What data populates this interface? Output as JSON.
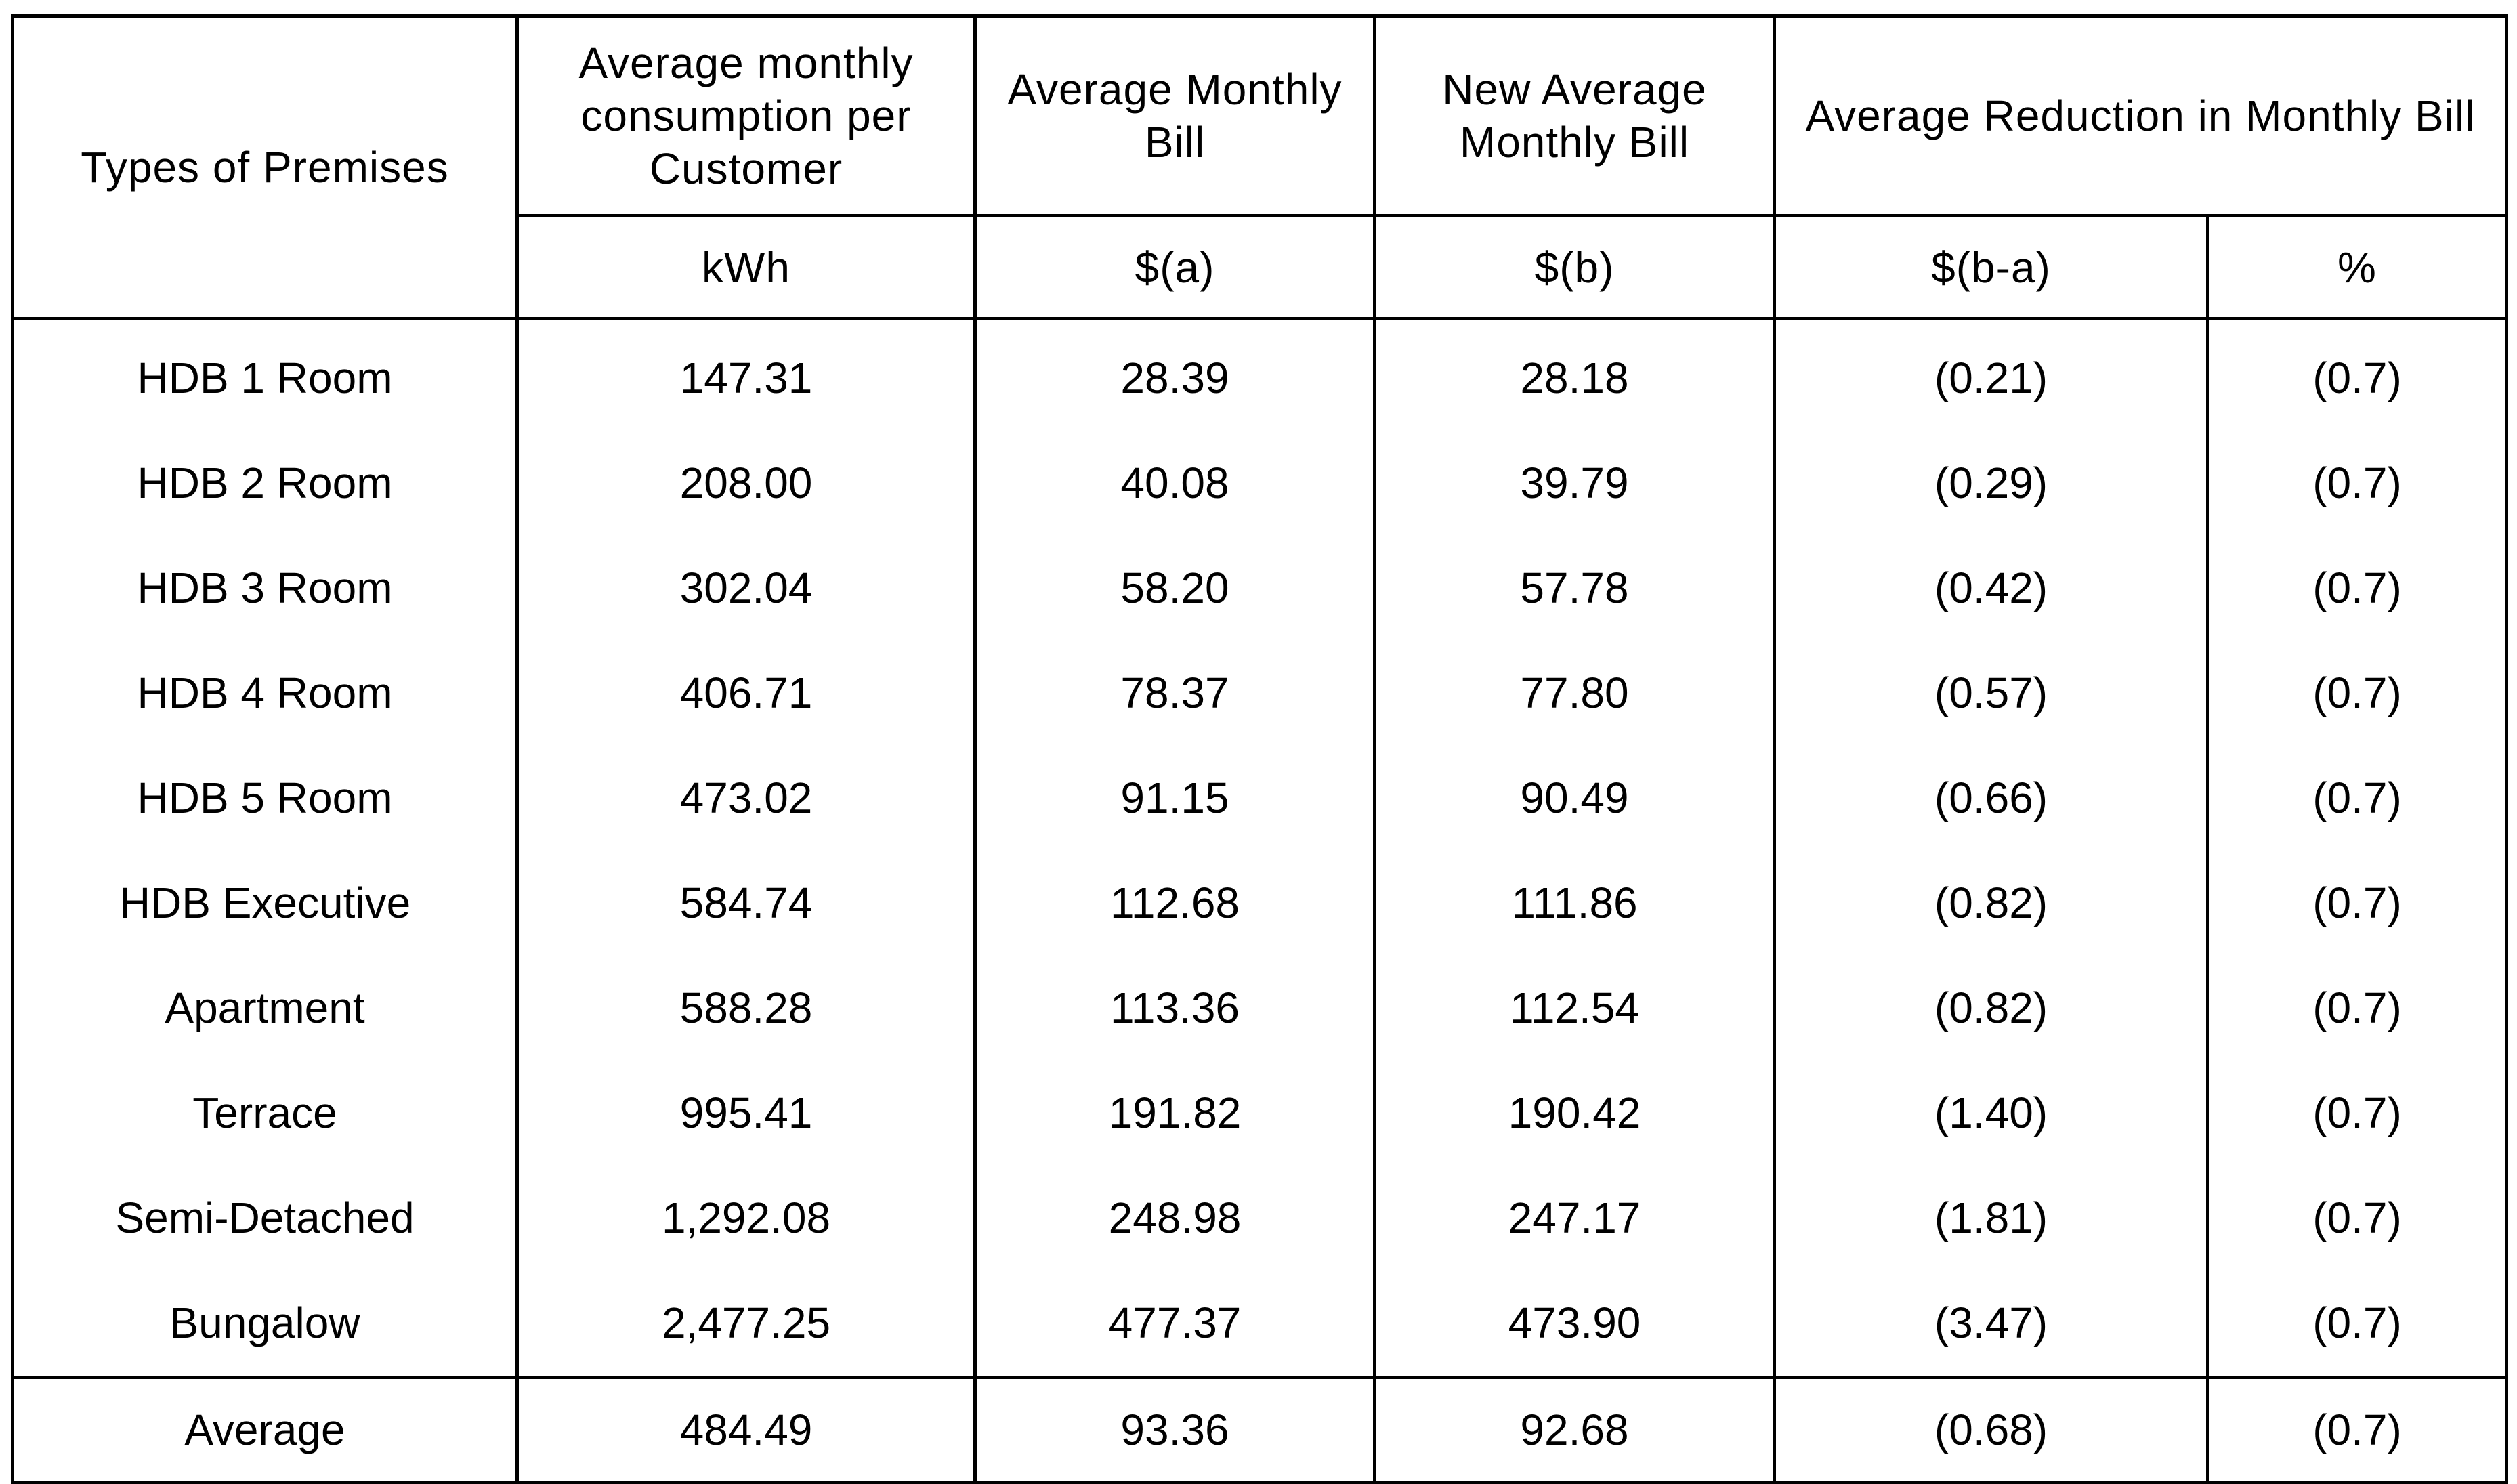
{
  "table": {
    "headers": {
      "premises": "Types of Premises",
      "consumption": "Average monthly consumption per Customer",
      "avg_bill": "Average Monthly Bill",
      "new_avg_bill": "New Average Monthly Bill",
      "reduction": "Average Reduction in Monthly Bill"
    },
    "units": {
      "consumption": "kWh",
      "avg_bill": "$(a)",
      "new_avg_bill": "$(b)",
      "reduction_amount": "$(b-a)",
      "reduction_pct": "%"
    },
    "rows": [
      [
        "HDB 1 Room",
        "147.31",
        "28.39",
        "28.18",
        "(0.21)",
        "(0.7)"
      ],
      [
        "HDB 2 Room",
        "208.00",
        "40.08",
        "39.79",
        "(0.29)",
        "(0.7)"
      ],
      [
        "HDB 3 Room",
        "302.04",
        "58.20",
        "57.78",
        "(0.42)",
        "(0.7)"
      ],
      [
        "HDB 4 Room",
        "406.71",
        "78.37",
        "77.80",
        "(0.57)",
        "(0.7)"
      ],
      [
        "HDB 5 Room",
        "473.02",
        "91.15",
        "90.49",
        "(0.66)",
        "(0.7)"
      ],
      [
        "HDB Executive",
        "584.74",
        "112.68",
        "111.86",
        "(0.82)",
        "(0.7)"
      ],
      [
        "Apartment",
        "588.28",
        "113.36",
        "112.54",
        "(0.82)",
        "(0.7)"
      ],
      [
        "Terrace",
        "995.41",
        "191.82",
        "190.42",
        "(1.40)",
        "(0.7)"
      ],
      [
        "Semi-Detached",
        "1,292.08",
        "248.98",
        "247.17",
        "(1.81)",
        "(0.7)"
      ],
      [
        "Bungalow",
        "2,477.25",
        "477.37",
        "473.90",
        "(3.47)",
        "(0.7)"
      ]
    ],
    "average": [
      "Average",
      "484.49",
      "93.36",
      "92.68",
      "(0.68)",
      "(0.7)"
    ]
  }
}
